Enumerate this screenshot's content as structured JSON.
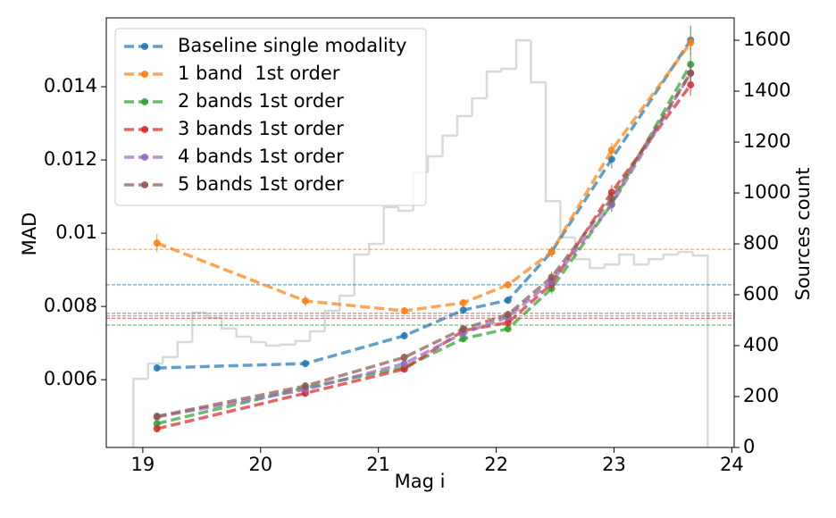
{
  "chart_data": {
    "type": "line",
    "xlabel": "Mag i",
    "ylabel": "MAD",
    "y2label": "Sources count",
    "xlim": [
      18.69,
      24.02
    ],
    "xticks": [
      19,
      20,
      21,
      22,
      23,
      24
    ],
    "ylim": [
      0.00415,
      0.01588
    ],
    "yticks": [
      0.006,
      0.008,
      0.01,
      0.012,
      0.014
    ],
    "y2lim": [
      0,
      1688
    ],
    "y2ticks": [
      0,
      200,
      400,
      600,
      800,
      1000,
      1200,
      1400,
      1600
    ],
    "legend": "upper left",
    "x": [
      19.12,
      20.38,
      21.22,
      21.72,
      22.1,
      22.47,
      22.98,
      23.65
    ],
    "series": [
      {
        "name": "Baseline single modality",
        "color": "#1f77b4",
        "reference": 0.00859,
        "values": [
          0.00632,
          0.00644,
          0.0072,
          0.0079,
          0.00817,
          0.00949,
          0.01202,
          0.01527
        ],
        "errors": [
          0.0001,
          0.0001,
          0.0001,
          0.0001,
          0.0001,
          0.00015,
          0.00025,
          0.0004
        ]
      },
      {
        "name": "1 band  1st order",
        "color": "#ff7f0e",
        "reference": 0.00956,
        "values": [
          0.00973,
          0.00815,
          0.00788,
          0.0081,
          0.00859,
          0.00949,
          0.01227,
          0.0152
        ],
        "errors": [
          0.00025,
          0.00015,
          0.0001,
          0.0001,
          0.0001,
          0.00015,
          0.0002,
          0.0003
        ]
      },
      {
        "name": "2 bands 1st order",
        "color": "#2ca02c",
        "reference": 0.00749,
        "values": [
          0.0048,
          0.00578,
          0.00634,
          0.00712,
          0.00739,
          0.00849,
          0.0108,
          0.01461
        ],
        "errors": [
          0.0001,
          0.0001,
          0.0001,
          0.0001,
          0.0001,
          0.00015,
          0.0002,
          0.0003
        ]
      },
      {
        "name": "3 bands 1st order",
        "color": "#d62728",
        "reference": 0.00768,
        "values": [
          0.00466,
          0.00563,
          0.00629,
          0.00734,
          0.00756,
          0.00861,
          0.01112,
          0.01405
        ],
        "errors": [
          0.0001,
          0.0001,
          0.0001,
          0.0001,
          0.0001,
          0.00015,
          0.0002,
          0.0003
        ]
      },
      {
        "name": "4 bands 1st order",
        "color": "#9467bd",
        "reference": 0.00774,
        "values": [
          0.00498,
          0.00573,
          0.00644,
          0.00727,
          0.00771,
          0.00868,
          0.01078,
          0.01437
        ],
        "errors": [
          0.0001,
          0.0001,
          0.0001,
          0.0001,
          0.0001,
          0.00015,
          0.0002,
          0.0003
        ]
      },
      {
        "name": "5 bands 1st order",
        "color": "#8c564b",
        "reference": 0.00781,
        "values": [
          0.005,
          0.00583,
          0.00661,
          0.00739,
          0.00778,
          0.0088,
          0.01095,
          0.01437
        ],
        "errors": [
          0.0001,
          0.0001,
          0.0001,
          0.0001,
          0.0001,
          0.00015,
          0.0002,
          0.0003
        ]
      }
    ],
    "histogram": {
      "axis": "y2",
      "color": "#d9d9d9",
      "bins": [
        18.92,
        19.045,
        19.17,
        19.295,
        19.42,
        19.545,
        19.67,
        19.795,
        19.92,
        20.045,
        20.17,
        20.295,
        20.42,
        20.545,
        20.67,
        20.795,
        20.92,
        21.045,
        21.17,
        21.295,
        21.42,
        21.545,
        21.67,
        21.795,
        21.92,
        22.045,
        22.17,
        22.295,
        22.42,
        22.545,
        22.67,
        22.795,
        22.92,
        23.045,
        23.17,
        23.295,
        23.42,
        23.545,
        23.67,
        23.795
      ],
      "counts": [
        270,
        330,
        355,
        414,
        530,
        509,
        467,
        435,
        414,
        400,
        404,
        418,
        456,
        537,
        596,
        758,
        800,
        944,
        930,
        1081,
        1144,
        1225,
        1302,
        1372,
        1477,
        1488,
        1600,
        1435,
        968,
        825,
        740,
        705,
        719,
        758,
        719,
        740,
        758,
        768,
        754
      ]
    }
  }
}
